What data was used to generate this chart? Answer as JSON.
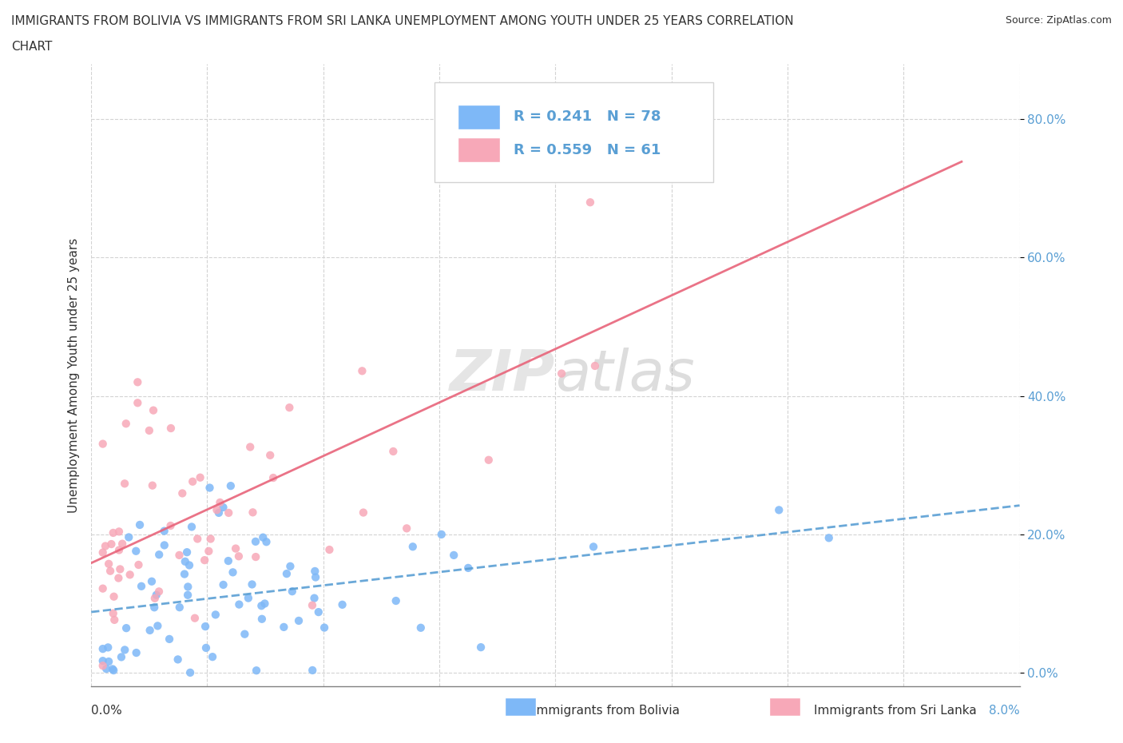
{
  "title_line1": "IMMIGRANTS FROM BOLIVIA VS IMMIGRANTS FROM SRI LANKA UNEMPLOYMENT AMONG YOUTH UNDER 25 YEARS CORRELATION",
  "title_line2": "CHART",
  "source": "Source: ZipAtlas.com",
  "ylabel": "Unemployment Among Youth under 25 years",
  "xlim": [
    0.0,
    0.08
  ],
  "ylim": [
    -0.02,
    0.88
  ],
  "bolivia_color": "#7eb8f7",
  "srilanka_color": "#f7a8b8",
  "bolivia_trend_color": "#5a9fd4",
  "srilanka_trend_color": "#e8647a",
  "R_bolivia": 0.241,
  "N_bolivia": 78,
  "R_srilanka": 0.559,
  "N_srilanka": 61,
  "watermark_zip": "ZIP",
  "watermark_atlas": "atlas",
  "ytick_vals": [
    0.0,
    0.2,
    0.4,
    0.6,
    0.8
  ],
  "ytick_labels": [
    "0.0%",
    "20.0%",
    "40.0%",
    "60.0%",
    "80.0%"
  ]
}
